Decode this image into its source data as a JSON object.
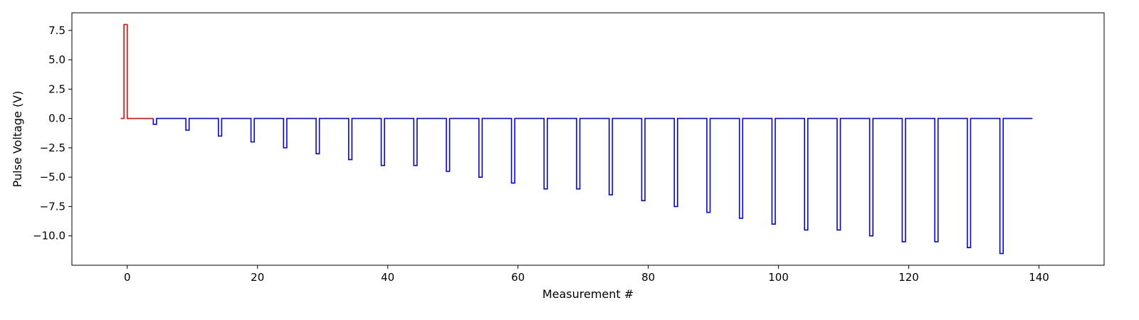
{
  "chart_data": {
    "type": "line",
    "title": "",
    "xlabel": "Measurement #",
    "ylabel": "Pulse Voltage (V)",
    "xlim": [
      -8.5,
      150
    ],
    "ylim": [
      -12.5,
      9
    ],
    "xticks": [
      0,
      20,
      40,
      60,
      80,
      100,
      120,
      140
    ],
    "yticks": [
      7.5,
      5.0,
      2.5,
      0.0,
      -2.5,
      -5.0,
      -7.5,
      -10.0
    ],
    "ytick_labels": [
      "7.5",
      "5.0",
      "2.5",
      "0.0",
      "−2.5",
      "−5.0",
      "−7.5",
      "−10.0"
    ],
    "grid": false,
    "legend": "none",
    "step": true,
    "series": [
      {
        "color": "#ff0000",
        "x": [
          -1,
          -0.5,
          0,
          4
        ],
        "y": [
          0,
          8,
          0,
          0
        ]
      },
      {
        "color": "#0000ff",
        "pulse_x": [
          4,
          9,
          14,
          19,
          24,
          29,
          34,
          39,
          44,
          49,
          54,
          59,
          64,
          69,
          74,
          79,
          84,
          89,
          94,
          99,
          104,
          109,
          114,
          119,
          124,
          129,
          134
        ],
        "pulse_y": [
          -0.5,
          -1.0,
          -1.5,
          -2.0,
          -2.5,
          -3.0,
          -3.5,
          -4.0,
          -4.0,
          -4.5,
          -5.0,
          -5.5,
          -6.0,
          -6.0,
          -6.5,
          -7.0,
          -7.5,
          -8.0,
          -8.5,
          -9.0,
          -9.5,
          -9.5,
          -10.0,
          -10.5,
          -10.5,
          -11.0,
          -11.5
        ],
        "pulse_width": 0.5,
        "end_x": 139,
        "baseline": 0
      }
    ]
  }
}
